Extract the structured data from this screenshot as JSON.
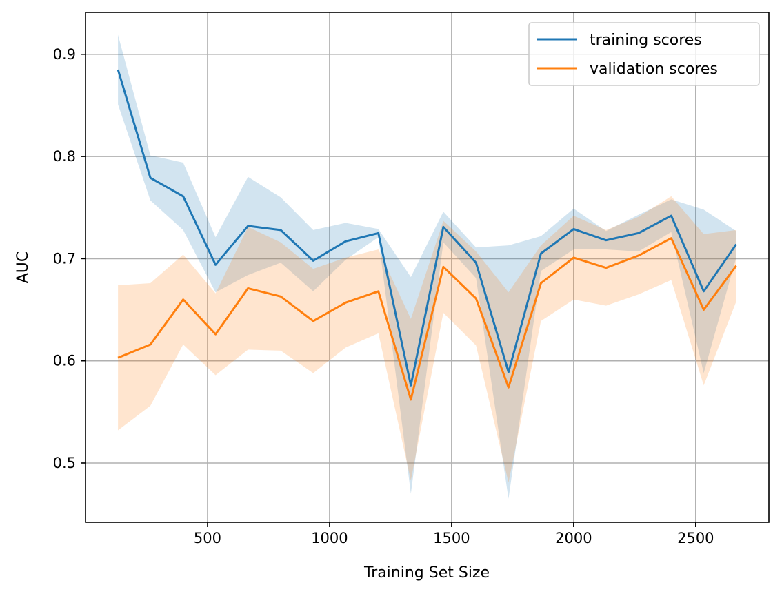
{
  "chart_data": {
    "type": "line",
    "xlabel": "Training Set Size",
    "ylabel": "AUC",
    "xlim": [
      0,
      2800
    ],
    "ylim": [
      0.442,
      0.941
    ],
    "xticks": [
      500,
      1000,
      1500,
      2000,
      2500
    ],
    "xtick_labels": [
      "500",
      "1000",
      "1500",
      "2000",
      "2500"
    ],
    "yticks": [
      0.5,
      0.6,
      0.7,
      0.8,
      0.9
    ],
    "ytick_labels": [
      "0.5",
      "0.6",
      "0.7",
      "0.8",
      "0.9"
    ],
    "grid": true,
    "legend_position": "top-right",
    "x": [
      133,
      266,
      400,
      533,
      666,
      800,
      933,
      1066,
      1200,
      1333,
      1466,
      1600,
      1733,
      1866,
      2000,
      2133,
      2266,
      2400,
      2533,
      2666
    ],
    "series": [
      {
        "name": "training scores",
        "color": "#1f77b4",
        "band_alpha": 0.2,
        "values": [
          0.885,
          0.779,
          0.761,
          0.694,
          0.732,
          0.728,
          0.698,
          0.717,
          0.725,
          0.576,
          0.731,
          0.696,
          0.589,
          0.705,
          0.729,
          0.718,
          0.725,
          0.742,
          0.668,
          0.714
        ],
        "upper": [
          0.919,
          0.801,
          0.794,
          0.721,
          0.78,
          0.76,
          0.728,
          0.735,
          0.729,
          0.682,
          0.746,
          0.711,
          0.713,
          0.722,
          0.749,
          0.727,
          0.743,
          0.758,
          0.748,
          0.727
        ],
        "lower": [
          0.851,
          0.757,
          0.728,
          0.667,
          0.684,
          0.696,
          0.668,
          0.699,
          0.721,
          0.47,
          0.716,
          0.681,
          0.465,
          0.688,
          0.709,
          0.709,
          0.707,
          0.726,
          0.588,
          0.701
        ]
      },
      {
        "name": "validation scores",
        "color": "#ff7f0e",
        "band_alpha": 0.2,
        "values": [
          0.603,
          0.616,
          0.66,
          0.626,
          0.671,
          0.663,
          0.639,
          0.657,
          0.668,
          0.562,
          0.692,
          0.661,
          0.574,
          0.676,
          0.701,
          0.691,
          0.703,
          0.72,
          0.65,
          0.693
        ],
        "upper": [
          0.674,
          0.676,
          0.704,
          0.666,
          0.731,
          0.716,
          0.69,
          0.701,
          0.709,
          0.641,
          0.737,
          0.707,
          0.667,
          0.713,
          0.742,
          0.728,
          0.741,
          0.761,
          0.724,
          0.728
        ],
        "lower": [
          0.532,
          0.556,
          0.616,
          0.586,
          0.611,
          0.61,
          0.588,
          0.613,
          0.627,
          0.483,
          0.647,
          0.615,
          0.481,
          0.639,
          0.66,
          0.654,
          0.665,
          0.679,
          0.576,
          0.658
        ]
      }
    ]
  }
}
